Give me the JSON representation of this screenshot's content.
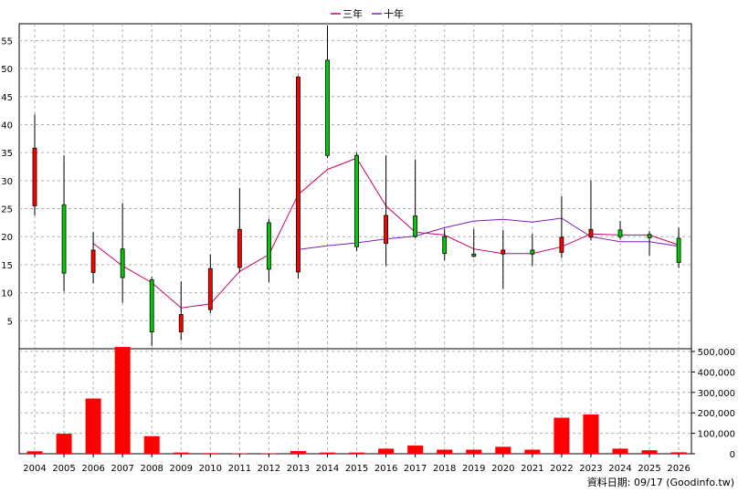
{
  "chart_data": {
    "type": "candlestick+bar",
    "legend": [
      {
        "name": "三年",
        "color": "#cc0066"
      },
      {
        "name": "十年",
        "color": "#7a1fc2"
      }
    ],
    "years": [
      "2004",
      "2005",
      "2006",
      "2007",
      "2008",
      "2009",
      "2010",
      "2011",
      "2012",
      "2013",
      "2014",
      "2015",
      "2016",
      "2017",
      "2018",
      "2019",
      "2020",
      "2021",
      "2022",
      "2023",
      "2024",
      "2025",
      "2026"
    ],
    "price": {
      "ylim": [
        0,
        58
      ],
      "yticks": [
        "5",
        "10",
        "15",
        "20",
        "25",
        "30",
        "35",
        "40",
        "45",
        "50",
        "55"
      ],
      "candles": [
        {
          "o": 25.5,
          "c": 35.8,
          "h": 41.8,
          "l": 23.8
        },
        {
          "o": 25.7,
          "c": 13.5,
          "h": 34.5,
          "l": 10.2
        },
        {
          "o": 13.6,
          "c": 17.6,
          "h": 20.8,
          "l": 11.7
        },
        {
          "o": 17.8,
          "c": 12.7,
          "h": 26.0,
          "l": 8.2
        },
        {
          "o": 12.3,
          "c": 3.0,
          "h": 12.8,
          "l": 0.5
        },
        {
          "o": 3.0,
          "c": 6.1,
          "h": 12.0,
          "l": 1.5
        },
        {
          "o": 7.0,
          "c": 14.3,
          "h": 16.8,
          "l": 6.3
        },
        {
          "o": 14.5,
          "c": 21.3,
          "h": 28.7,
          "l": 13.6
        },
        {
          "o": 22.5,
          "c": 14.2,
          "h": 23.2,
          "l": 11.9
        },
        {
          "o": 13.7,
          "c": 48.5,
          "h": 48.7,
          "l": 12.5
        },
        {
          "o": 51.5,
          "c": 34.5,
          "h": 57.7,
          "l": 34.0
        },
        {
          "o": 34.5,
          "c": 18.2,
          "h": 35.0,
          "l": 17.4
        },
        {
          "o": 18.8,
          "c": 23.8,
          "h": 34.5,
          "l": 14.8
        },
        {
          "o": 23.7,
          "c": 20.0,
          "h": 33.8,
          "l": 19.8
        },
        {
          "o": 20.0,
          "c": 17.0,
          "h": 21.4,
          "l": 15.8
        },
        {
          "o": 16.9,
          "c": 16.5,
          "h": 21.4,
          "l": 16.3
        },
        {
          "o": 16.9,
          "c": 17.6,
          "h": 21.2,
          "l": 10.7
        },
        {
          "o": 17.6,
          "c": 16.9,
          "h": 20.5,
          "l": 14.8
        },
        {
          "o": 17.2,
          "c": 19.9,
          "h": 27.2,
          "l": 16.2
        },
        {
          "o": 19.9,
          "c": 21.3,
          "h": 30.0,
          "l": 19.3
        },
        {
          "o": 21.2,
          "c": 20.0,
          "h": 22.8,
          "l": 19.5
        },
        {
          "o": 20.4,
          "c": 19.8,
          "h": 21.0,
          "l": 16.6
        },
        {
          "o": 19.7,
          "c": 15.4,
          "h": 21.6,
          "l": 14.4
        }
      ],
      "three_year_ma": [
        null,
        null,
        18.8,
        14.8,
        11.8,
        7.3,
        8.0,
        13.8,
        16.8,
        27.5,
        32.0,
        34.0,
        25.5,
        20.8,
        20.3,
        17.8,
        17.0,
        17.0,
        18.2,
        20.5,
        20.3,
        20.3,
        18.5
      ],
      "ten_year_ma": [
        null,
        null,
        null,
        null,
        null,
        null,
        null,
        null,
        null,
        17.7,
        18.4,
        18.9,
        19.6,
        20.1,
        21.6,
        22.8,
        23.1,
        22.6,
        23.3,
        20.0,
        19.1,
        19.1,
        18.3
      ]
    },
    "volume": {
      "ylim": [
        0,
        500000
      ],
      "yticks": [
        "0",
        "100,000",
        "200,000",
        "300,000",
        "400,000",
        "500,000"
      ],
      "values": [
        12000,
        98000,
        270000,
        522000,
        86000,
        6000,
        3000,
        2000,
        2000,
        13000,
        6000,
        6000,
        25000,
        40000,
        20000,
        20000,
        34000,
        20000,
        176000,
        192000,
        25000,
        17000,
        7000
      ]
    }
  },
  "footer": {
    "text": "資料日期: 09/17  (Goodinfo.tw)"
  },
  "colors": {
    "rise": "#ff0000",
    "fall": "#00cc00",
    "volume_bar": "#ff0000",
    "grid": "#b0b0b0"
  }
}
